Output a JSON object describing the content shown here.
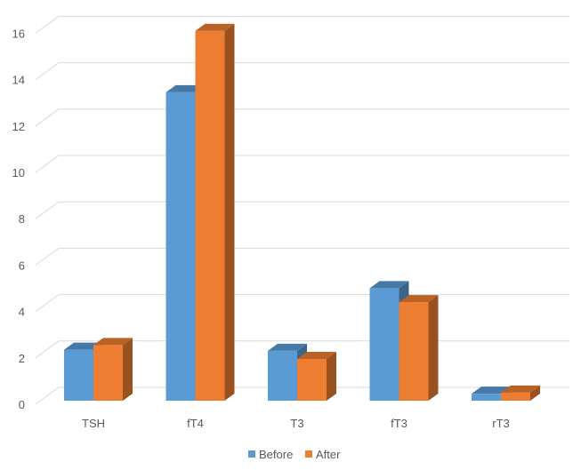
{
  "chart_data": {
    "type": "bar",
    "style": "3d-clustered-column",
    "categories": [
      "TSH",
      "fT4",
      "T3",
      "fT3",
      "rT3"
    ],
    "series": [
      {
        "name": "Before",
        "values": [
          2.2,
          13.3,
          2.15,
          4.85,
          0.3
        ],
        "color": "#5B9BD5"
      },
      {
        "name": "After",
        "values": [
          2.4,
          15.95,
          1.8,
          4.25,
          0.35
        ],
        "color": "#ED7D31"
      }
    ],
    "yticks": [
      "0",
      "2",
      "4",
      "6",
      "8",
      "10",
      "12",
      "14",
      "16"
    ],
    "ylim": [
      0,
      16
    ],
    "grid": true,
    "legend": "bottom",
    "title": "",
    "xlabel": "",
    "ylabel": ""
  }
}
